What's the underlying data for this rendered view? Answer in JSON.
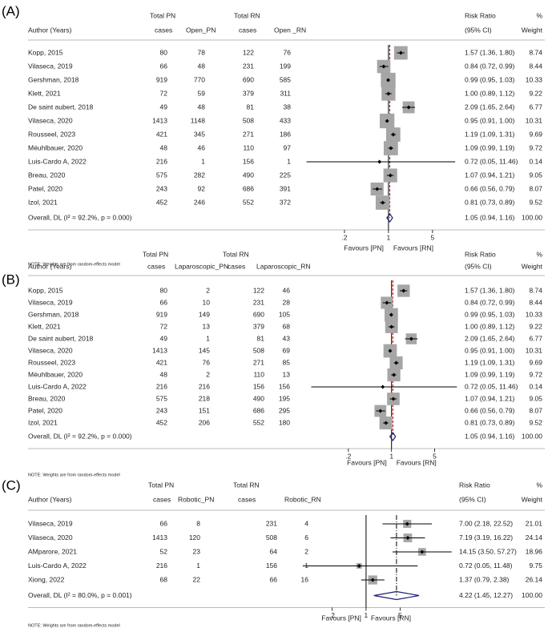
{
  "chart_data": [
    {
      "type": "forest",
      "panel": "(A)",
      "log": true,
      "columns": [
        {
          "header": [
            "Total PN",
            "cases"
          ],
          "values": [
            80,
            66,
            919,
            72,
            49,
            1413,
            421,
            48,
            216,
            575,
            243,
            452
          ]
        },
        {
          "header": [
            "Open_PN"
          ],
          "values": [
            78,
            48,
            770,
            59,
            48,
            1148,
            345,
            46,
            1,
            282,
            92,
            246
          ]
        },
        {
          "header": [
            "Total RN",
            "cases"
          ],
          "values": [
            122,
            231,
            690,
            379,
            81,
            508,
            271,
            110,
            156,
            490,
            686,
            552
          ]
        },
        {
          "header": [
            "Open _RN"
          ],
          "values": [
            76,
            199,
            585,
            311,
            38,
            433,
            186,
            97,
            1,
            225,
            391,
            372
          ]
        }
      ],
      "author_header": "Author (Years)",
      "rr_header": [
        "Risk Ratio",
        "(95% CI)"
      ],
      "weight_header": [
        "%",
        "Weight"
      ],
      "categories": [
        "Kopp, 2015",
        "Vilaseca, 2019",
        "Gershman, 2018",
        "Klett, 2021",
        "De saint aubert, 2018",
        "Vilaseca, 2020",
        "Rousseel, 2023",
        "Méuhlbauer, 2020",
        "Luis-Cardo A, 2022",
        "Breau, 2020",
        "Patel, 2020",
        "Izol, 2021"
      ],
      "values": [
        1.57,
        0.84,
        0.99,
        1.0,
        2.09,
        0.95,
        1.19,
        1.09,
        0.72,
        1.07,
        0.66,
        0.81
      ],
      "ci_low": [
        1.36,
        0.72,
        0.95,
        0.89,
        1.65,
        0.91,
        1.09,
        0.99,
        0.05,
        0.94,
        0.56,
        0.73
      ],
      "ci_high": [
        1.8,
        0.99,
        1.03,
        1.12,
        2.64,
        1.0,
        1.31,
        1.19,
        11.46,
        1.21,
        0.79,
        0.89
      ],
      "value_labels": [
        "1.57 (1.36, 1.80)",
        "0.84 (0.72, 0.99)",
        "0.99 (0.95, 1.03)",
        "1.00 (0.89, 1.12)",
        "2.09 (1.65, 2.64)",
        "0.95 (0.91, 1.00)",
        "1.19 (1.09, 1.31)",
        "1.09 (0.99, 1.19)",
        "0.72 (0.05, 11.46)",
        "1.07 (0.94, 1.21)",
        "0.66 (0.56, 0.79)",
        "0.81 (0.73, 0.89)"
      ],
      "weights": [
        8.74,
        8.44,
        10.33,
        9.22,
        6.77,
        10.31,
        9.69,
        9.72,
        0.14,
        9.05,
        8.07,
        9.52
      ],
      "overall": {
        "label": "Overall, DL (I² = 92.2%, p = 0.000)",
        "value": 1.05,
        "ci_low": 0.94,
        "ci_high": 1.16,
        "value_label": "1.05 (0.94, 1.16)",
        "weight": 100,
        "weight_label": "100.00"
      },
      "reference_line": 1,
      "xlim": [
        0.04,
        14
      ],
      "xticks": [
        {
          "value": 0.2,
          "label": ".2"
        },
        1,
        5
      ],
      "x_labels": [
        "Favours [PN]",
        "Favours [RN]"
      ],
      "note": "NOTE: Weights are from random-effects model",
      "box_color": "#a6a6a6",
      "pooled_line_color": "#c00000",
      "diamond_color": "#1f1f6e"
    },
    {
      "type": "forest",
      "panel": "(B)",
      "log": true,
      "columns": [
        {
          "header": [
            "Total PN",
            "cases"
          ],
          "values": [
            80,
            66,
            919,
            72,
            49,
            1413,
            421,
            48,
            216,
            575,
            243,
            452
          ]
        },
        {
          "header": [
            "Laparoscopic_PN"
          ],
          "values": [
            2,
            10,
            149,
            13,
            1,
            145,
            76,
            2,
            216,
            218,
            151,
            206
          ]
        },
        {
          "header": [
            "Total RN",
            "cases"
          ],
          "values": [
            122,
            231,
            690,
            379,
            81,
            508,
            271,
            110,
            156,
            490,
            686,
            552
          ]
        },
        {
          "header": [
            "Laparoscopic_RN"
          ],
          "values": [
            46,
            28,
            105,
            68,
            43,
            69,
            85,
            13,
            156,
            195,
            295,
            180
          ]
        }
      ],
      "author_header": "Author (Years)",
      "rr_header": [
        "Risk Ratio",
        "(95% CI)"
      ],
      "weight_header": [
        "%",
        "Weight"
      ],
      "categories": [
        "Kopp, 2015",
        "Vilaseca, 2019",
        "Gershman, 2018",
        "Klett, 2021",
        "De saint aubert, 2018",
        "Vilaseca, 2020",
        "Rousseel, 2023",
        "Méuhlbauer, 2020",
        "Luis-Cardo A, 2022",
        "Breau, 2020",
        "Patel, 2020",
        "Izol, 2021"
      ],
      "values": [
        1.57,
        0.84,
        0.99,
        1.0,
        2.09,
        0.95,
        1.19,
        1.09,
        0.72,
        1.07,
        0.66,
        0.81
      ],
      "ci_low": [
        1.36,
        0.72,
        0.95,
        0.89,
        1.65,
        0.91,
        1.09,
        0.99,
        0.05,
        0.94,
        0.56,
        0.73
      ],
      "ci_high": [
        1.8,
        0.99,
        1.03,
        1.12,
        2.64,
        1.0,
        1.31,
        1.19,
        11.46,
        1.21,
        0.79,
        0.89
      ],
      "value_labels": [
        "1.57 (1.36, 1.80)",
        "0.84 (0.72, 0.99)",
        "0.99 (0.95, 1.03)",
        "1.00 (0.89, 1.12)",
        "2.09 (1.65, 2.64)",
        "0.95 (0.91, 1.00)",
        "1.19 (1.09, 1.31)",
        "1.09 (0.99, 1.19)",
        "0.72 (0.05, 11.46)",
        "1.07 (0.94, 1.21)",
        "0.66 (0.56, 0.79)",
        "0.81 (0.73, 0.89)"
      ],
      "weights": [
        8.74,
        8.44,
        10.33,
        9.22,
        6.77,
        10.31,
        9.69,
        9.72,
        0.14,
        9.05,
        8.07,
        9.52
      ],
      "overall": {
        "label": "Overall, DL (I² = 92.2%, p = 0.000)",
        "value": 1.05,
        "ci_low": 0.94,
        "ci_high": 1.16,
        "value_label": "1.05 (0.94, 1.16)",
        "weight": 100,
        "weight_label": "100.00"
      },
      "reference_line": 1,
      "xlim": [
        0.04,
        14
      ],
      "xticks": [
        {
          "value": 0.2,
          "label": ".2"
        },
        1,
        5
      ],
      "x_labels": [
        "Favours [PN]",
        "Favours [RN]"
      ],
      "note": "NOTE: Weights are from random-effects model",
      "box_color": "#a6a6a6",
      "pooled_line_color": "#c00000",
      "diamond_color": "#1f1f6e"
    },
    {
      "type": "forest",
      "panel": "(C)",
      "log": true,
      "columns": [
        {
          "header": [
            "Total PN",
            "cases"
          ],
          "values": [
            66,
            1413,
            52,
            216,
            68
          ]
        },
        {
          "header": [
            "Robotic_PN"
          ],
          "values": [
            8,
            120,
            23,
            1,
            22
          ]
        },
        {
          "header": [
            "Total RN",
            "cases"
          ],
          "values": [
            231,
            508,
            64,
            156,
            66
          ]
        },
        {
          "header": [
            "Robotic_RN"
          ],
          "values": [
            4,
            6,
            2,
            1,
            16
          ]
        }
      ],
      "author_header": "Author (Years)",
      "rr_header": [
        "Risk Ratio",
        "(95% CI)"
      ],
      "weight_header": [
        "%",
        "Weight"
      ],
      "categories": [
        "Vilaseca, 2019",
        "Vilaseca, 2020",
        "AMparore, 2021",
        "Luis-Cardo A, 2022",
        "Xiong, 2022"
      ],
      "values": [
        7.0,
        7.19,
        14.15,
        0.72,
        1.37
      ],
      "ci_low": [
        2.18,
        3.19,
        3.5,
        0.05,
        0.79
      ],
      "ci_high": [
        22.52,
        16.22,
        57.27,
        11.48,
        2.38
      ],
      "value_labels": [
        "7.00 (2.18, 22.52)",
        "7.19 (3.19, 16.22)",
        "14.15 (3.50, 57.27)",
        "0.72 (0.05, 11.48)",
        "1.37 (0.79, 2.38)"
      ],
      "weights": [
        21.01,
        24.14,
        18.96,
        9.75,
        26.14
      ],
      "overall": {
        "label": "Overall, DL (I² = 80.0%, p = 0.001)",
        "value": 4.22,
        "ci_low": 1.45,
        "ci_high": 12.27,
        "value_label": "4.22 (1.45, 12.27)",
        "weight": 100,
        "weight_label": "100.00"
      },
      "reference_line": 1,
      "xlim": [
        0.04,
        70
      ],
      "xticks": [
        {
          "value": 0.2,
          "label": ".2"
        },
        1,
        5
      ],
      "x_labels": [
        "Favours [PN]",
        "Favours [RN]"
      ],
      "note": "NOTE: Weights are from random-effects model",
      "box_color": "#a6a6a6",
      "pooled_line_color": "#000000",
      "diamond_color": "#1f1f6e"
    }
  ]
}
